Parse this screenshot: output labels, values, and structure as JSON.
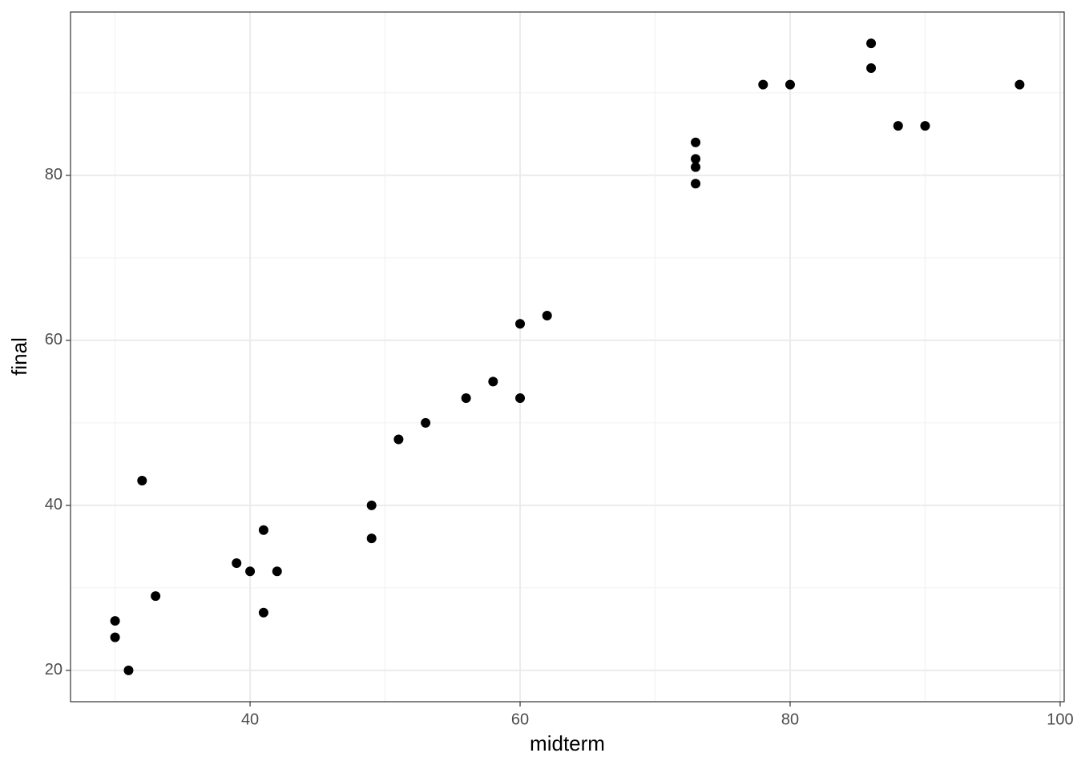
{
  "chart_data": {
    "type": "scatter",
    "x_label": "midterm",
    "y_label": "final",
    "x": [
      30,
      30,
      31,
      32,
      33,
      39,
      40,
      41,
      41,
      42,
      49,
      49,
      51,
      53,
      56,
      58,
      60,
      60,
      62,
      73,
      73,
      73,
      73,
      78,
      80,
      86,
      86,
      88,
      90,
      97
    ],
    "values": [
      26,
      24,
      20,
      43,
      29,
      33,
      32,
      37,
      27,
      32,
      40,
      36,
      48,
      50,
      53,
      55,
      62,
      53,
      63,
      84,
      82,
      81,
      79,
      91,
      91,
      96,
      93,
      86,
      86,
      91
    ],
    "color": "#000000",
    "xlim": [
      26.7,
      100.3
    ],
    "ylim": [
      16.2,
      99.8
    ],
    "xticks": [
      40,
      60,
      80,
      100
    ],
    "yticks": [
      20,
      40,
      60,
      80
    ],
    "minor_xticks": [
      30,
      50,
      70,
      90
    ],
    "minor_yticks": [
      30,
      50,
      70,
      90
    ],
    "grid": true
  }
}
